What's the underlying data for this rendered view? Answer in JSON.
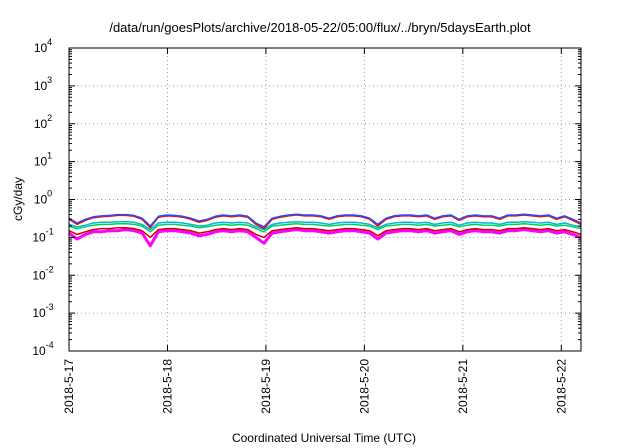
{
  "title": "/data/run/goesPlots/archive/2018-05-22/05:00/flux/../bryn/5daysEarth.plot",
  "colors": {
    "frame": "#000000",
    "grid": "#a0a0a0"
  },
  "chart_data": {
    "type": "line",
    "title": "/data/run/goesPlots/archive/2018-05-22/05:00/flux/../bryn/5daysEarth.plot",
    "xlabel": "Coordinated Universal Time (UTC)",
    "ylabel": "cGy/day",
    "yscale": "log",
    "ylim": [
      0.0001,
      10000
    ],
    "xlim": [
      "2018-05-17",
      "2018-05-22T05:00"
    ],
    "x_tick_labels": [
      "2018-5-17",
      "2018-5-18",
      "2018-5-19",
      "2018-5-20",
      "2018-5-21",
      "2018-5-22"
    ],
    "y_ticks": [
      {
        "base": "10",
        "exp": "-4",
        "value": 0.0001
      },
      {
        "base": "10",
        "exp": "-3",
        "value": 0.001
      },
      {
        "base": "10",
        "exp": "-2",
        "value": 0.01
      },
      {
        "base": "10",
        "exp": "-1",
        "value": 0.1
      },
      {
        "base": "10",
        "exp": "0",
        "value": 1
      },
      {
        "base": "10",
        "exp": "1",
        "value": 10
      },
      {
        "base": "10",
        "exp": "2",
        "value": 100
      },
      {
        "base": "10",
        "exp": "3",
        "value": 1000
      },
      {
        "base": "10",
        "exp": "4",
        "value": 10000
      }
    ],
    "grid": true,
    "legend": "none",
    "series_style": [
      {
        "color": "#ff00ff",
        "base": 0.13
      },
      {
        "color": "#cc0000",
        "base": 0.15
      },
      {
        "color": "#00cc66",
        "base": 0.2
      },
      {
        "color": "#00bbcc",
        "base": 0.22
      },
      {
        "color": "#ff0000",
        "base": 0.32
      },
      {
        "color": "#2050ff",
        "base": 0.34
      }
    ],
    "series": [
      {
        "color": "#ff00ff",
        "values": [
          0.13,
          0.09,
          0.12,
          0.14,
          0.14,
          0.15,
          0.15,
          0.16,
          0.15,
          0.13,
          0.06,
          0.14,
          0.15,
          0.15,
          0.14,
          0.13,
          0.11,
          0.12,
          0.14,
          0.15,
          0.14,
          0.15,
          0.14,
          0.1,
          0.07,
          0.13,
          0.14,
          0.15,
          0.16,
          0.15,
          0.15,
          0.14,
          0.13,
          0.14,
          0.15,
          0.15,
          0.14,
          0.13,
          0.09,
          0.13,
          0.14,
          0.15,
          0.15,
          0.14,
          0.15,
          0.13,
          0.14,
          0.15,
          0.12,
          0.14,
          0.15,
          0.14,
          0.14,
          0.13,
          0.15,
          0.15,
          0.16,
          0.15,
          0.14,
          0.15,
          0.13,
          0.14,
          0.12,
          0.1
        ]
      },
      {
        "color": "#cc0000",
        "values": [
          0.15,
          0.12,
          0.14,
          0.16,
          0.17,
          0.17,
          0.18,
          0.18,
          0.17,
          0.15,
          0.1,
          0.16,
          0.17,
          0.17,
          0.16,
          0.15,
          0.13,
          0.14,
          0.16,
          0.17,
          0.16,
          0.17,
          0.16,
          0.12,
          0.1,
          0.15,
          0.16,
          0.17,
          0.18,
          0.17,
          0.17,
          0.16,
          0.15,
          0.16,
          0.17,
          0.17,
          0.16,
          0.15,
          0.11,
          0.15,
          0.16,
          0.17,
          0.17,
          0.16,
          0.17,
          0.15,
          0.16,
          0.17,
          0.14,
          0.16,
          0.17,
          0.16,
          0.16,
          0.15,
          0.17,
          0.17,
          0.18,
          0.17,
          0.16,
          0.17,
          0.15,
          0.16,
          0.14,
          0.12
        ]
      },
      {
        "color": "#00cc66",
        "values": [
          0.2,
          0.17,
          0.19,
          0.21,
          0.22,
          0.22,
          0.23,
          0.23,
          0.22,
          0.2,
          0.14,
          0.21,
          0.22,
          0.22,
          0.21,
          0.2,
          0.18,
          0.19,
          0.21,
          0.22,
          0.21,
          0.22,
          0.21,
          0.17,
          0.14,
          0.2,
          0.21,
          0.22,
          0.23,
          0.22,
          0.22,
          0.21,
          0.2,
          0.21,
          0.22,
          0.22,
          0.21,
          0.2,
          0.16,
          0.2,
          0.21,
          0.22,
          0.22,
          0.21,
          0.22,
          0.2,
          0.21,
          0.22,
          0.19,
          0.21,
          0.22,
          0.21,
          0.21,
          0.2,
          0.22,
          0.22,
          0.23,
          0.22,
          0.21,
          0.22,
          0.2,
          0.21,
          0.19,
          0.17
        ]
      },
      {
        "color": "#00bbcc",
        "values": [
          0.22,
          0.19,
          0.21,
          0.24,
          0.25,
          0.25,
          0.26,
          0.26,
          0.25,
          0.22,
          0.16,
          0.24,
          0.25,
          0.25,
          0.24,
          0.22,
          0.2,
          0.21,
          0.24,
          0.25,
          0.24,
          0.25,
          0.24,
          0.19,
          0.16,
          0.22,
          0.24,
          0.25,
          0.26,
          0.25,
          0.25,
          0.24,
          0.22,
          0.24,
          0.25,
          0.25,
          0.24,
          0.22,
          0.18,
          0.22,
          0.24,
          0.25,
          0.25,
          0.24,
          0.25,
          0.22,
          0.24,
          0.25,
          0.21,
          0.24,
          0.25,
          0.24,
          0.24,
          0.22,
          0.25,
          0.25,
          0.26,
          0.25,
          0.24,
          0.25,
          0.22,
          0.24,
          0.21,
          0.19
        ]
      },
      {
        "color": "#ff0000",
        "values": [
          0.3,
          0.22,
          0.28,
          0.33,
          0.35,
          0.36,
          0.38,
          0.38,
          0.36,
          0.3,
          0.18,
          0.34,
          0.37,
          0.36,
          0.34,
          0.3,
          0.25,
          0.28,
          0.34,
          0.37,
          0.35,
          0.37,
          0.34,
          0.22,
          0.17,
          0.3,
          0.34,
          0.37,
          0.39,
          0.37,
          0.37,
          0.35,
          0.3,
          0.35,
          0.37,
          0.37,
          0.35,
          0.3,
          0.2,
          0.3,
          0.35,
          0.37,
          0.37,
          0.35,
          0.37,
          0.3,
          0.35,
          0.37,
          0.28,
          0.35,
          0.37,
          0.35,
          0.35,
          0.3,
          0.37,
          0.37,
          0.39,
          0.37,
          0.35,
          0.37,
          0.3,
          0.35,
          0.28,
          0.22
        ]
      },
      {
        "color": "#2050ff",
        "values": [
          0.32,
          0.24,
          0.3,
          0.35,
          0.37,
          0.38,
          0.4,
          0.4,
          0.38,
          0.32,
          0.2,
          0.36,
          0.39,
          0.38,
          0.36,
          0.32,
          0.27,
          0.3,
          0.36,
          0.39,
          0.37,
          0.39,
          0.36,
          0.24,
          0.19,
          0.32,
          0.36,
          0.39,
          0.41,
          0.39,
          0.39,
          0.37,
          0.32,
          0.37,
          0.39,
          0.39,
          0.37,
          0.32,
          0.22,
          0.32,
          0.37,
          0.39,
          0.39,
          0.37,
          0.39,
          0.32,
          0.37,
          0.39,
          0.3,
          0.37,
          0.39,
          0.37,
          0.37,
          0.32,
          0.39,
          0.39,
          0.41,
          0.39,
          0.37,
          0.39,
          0.32,
          0.37,
          0.3,
          0.24
        ]
      }
    ]
  }
}
